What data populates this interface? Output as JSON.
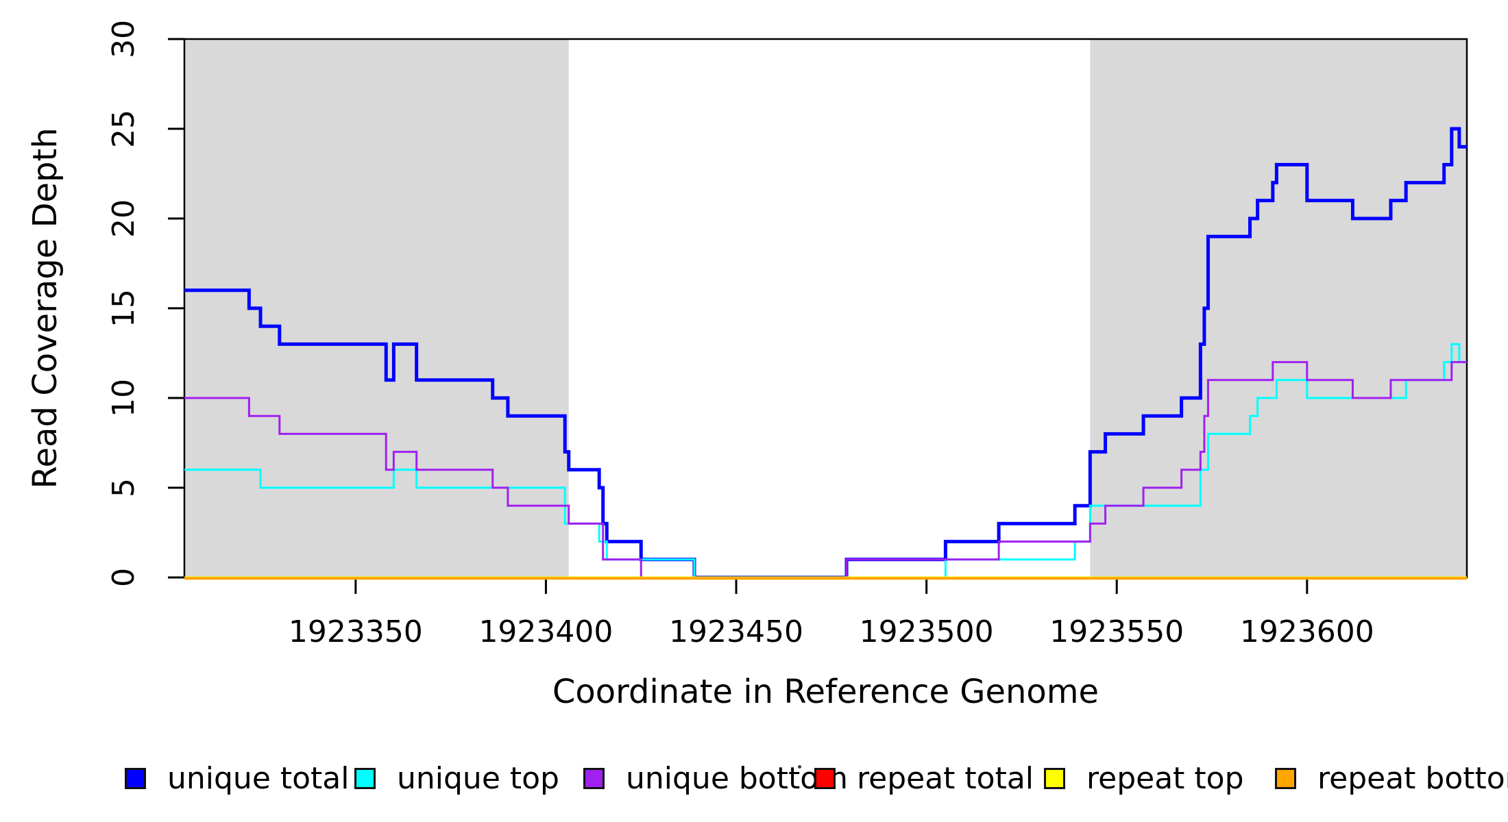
{
  "figure": {
    "background": "#FFFFFF",
    "frame_color": "#000000",
    "shaded_band_color": "#D9D9D9"
  },
  "chart_data": {
    "type": "line",
    "subtype": "step-after",
    "title": "",
    "xlabel": "Coordinate in Reference Genome",
    "ylabel": "Read Coverage Depth",
    "xlim": [
      1923305,
      1923642
    ],
    "ylim": [
      0,
      30
    ],
    "x_ticks": [
      1923350,
      1923400,
      1923450,
      1923500,
      1923550,
      1923600
    ],
    "y_ticks": [
      0,
      5,
      10,
      15,
      20,
      25,
      30
    ],
    "grid": false,
    "legend_position": "bottom",
    "shaded_regions": [
      {
        "x_start": 1923305,
        "x_end": 1923406,
        "color": "#D9D9D9"
      },
      {
        "x_start": 1923543,
        "x_end": 1923642,
        "color": "#D9D9D9"
      }
    ],
    "series": [
      {
        "name": "unique total",
        "color": "#0000FF",
        "line_width": 5,
        "steps": [
          [
            1923305,
            16
          ],
          [
            1923322,
            15
          ],
          [
            1923325,
            14
          ],
          [
            1923330,
            13
          ],
          [
            1923358,
            11
          ],
          [
            1923360,
            13
          ],
          [
            1923366,
            11
          ],
          [
            1923386,
            10
          ],
          [
            1923390,
            9
          ],
          [
            1923405,
            7
          ],
          [
            1923406,
            6
          ],
          [
            1923414,
            5
          ],
          [
            1923415,
            3
          ],
          [
            1923416,
            2
          ],
          [
            1923425,
            1
          ],
          [
            1923439,
            0
          ],
          [
            1923479,
            1
          ],
          [
            1923505,
            2
          ],
          [
            1923519,
            3
          ],
          [
            1923539,
            4
          ],
          [
            1923543,
            7
          ],
          [
            1923547,
            8
          ],
          [
            1923557,
            9
          ],
          [
            1923567,
            10
          ],
          [
            1923572,
            13
          ],
          [
            1923573,
            15
          ],
          [
            1923574,
            19
          ],
          [
            1923585,
            20
          ],
          [
            1923587,
            21
          ],
          [
            1923591,
            22
          ],
          [
            1923592,
            23
          ],
          [
            1923600,
            21
          ],
          [
            1923612,
            20
          ],
          [
            1923622,
            21
          ],
          [
            1923626,
            22
          ],
          [
            1923636,
            23
          ],
          [
            1923638,
            25
          ],
          [
            1923640,
            24
          ]
        ]
      },
      {
        "name": "unique top",
        "color": "#00FFFF",
        "line_width": 3,
        "steps": [
          [
            1923305,
            6
          ],
          [
            1923325,
            5
          ],
          [
            1923360,
            6
          ],
          [
            1923366,
            5
          ],
          [
            1923405,
            3
          ],
          [
            1923414,
            2
          ],
          [
            1923416,
            1
          ],
          [
            1923439,
            0
          ],
          [
            1923505,
            1
          ],
          [
            1923539,
            2
          ],
          [
            1923543,
            4
          ],
          [
            1923572,
            6
          ],
          [
            1923574,
            8
          ],
          [
            1923585,
            9
          ],
          [
            1923587,
            10
          ],
          [
            1923592,
            11
          ],
          [
            1923600,
            10
          ],
          [
            1923626,
            11
          ],
          [
            1923636,
            12
          ],
          [
            1923638,
            13
          ],
          [
            1923640,
            12
          ]
        ]
      },
      {
        "name": "unique bottom",
        "color": "#A020F0",
        "line_width": 3,
        "steps": [
          [
            1923305,
            10
          ],
          [
            1923322,
            9
          ],
          [
            1923330,
            8
          ],
          [
            1923358,
            6
          ],
          [
            1923360,
            7
          ],
          [
            1923366,
            6
          ],
          [
            1923386,
            5
          ],
          [
            1923390,
            4
          ],
          [
            1923406,
            3
          ],
          [
            1923415,
            1
          ],
          [
            1923425,
            0
          ],
          [
            1923479,
            1
          ],
          [
            1923519,
            2
          ],
          [
            1923543,
            3
          ],
          [
            1923547,
            4
          ],
          [
            1923557,
            5
          ],
          [
            1923567,
            6
          ],
          [
            1923572,
            7
          ],
          [
            1923573,
            9
          ],
          [
            1923574,
            11
          ],
          [
            1923591,
            12
          ],
          [
            1923600,
            11
          ],
          [
            1923612,
            10
          ],
          [
            1923622,
            11
          ],
          [
            1923638,
            12
          ]
        ]
      },
      {
        "name": "repeat total",
        "color": "#FF0000",
        "line_width": 3,
        "steps": [
          [
            1923305,
            0
          ]
        ]
      },
      {
        "name": "repeat top",
        "color": "#FFFF00",
        "line_width": 3,
        "steps": [
          [
            1923305,
            0
          ]
        ]
      },
      {
        "name": "repeat bottom",
        "color": "#FFA500",
        "line_width": 4,
        "steps": [
          [
            1923305,
            0
          ]
        ]
      }
    ]
  },
  "legend": {
    "items": [
      {
        "label": "unique total",
        "color": "#0000FF"
      },
      {
        "label": "unique top",
        "color": "#00FFFF"
      },
      {
        "label": "unique bottom",
        "color": "#A020F0"
      },
      {
        "label": "repeat total",
        "color": "#FF0000"
      },
      {
        "label": "repeat top",
        "color": "#FFFF00"
      },
      {
        "label": "repeat bottom",
        "color": "#FFA500"
      }
    ]
  }
}
